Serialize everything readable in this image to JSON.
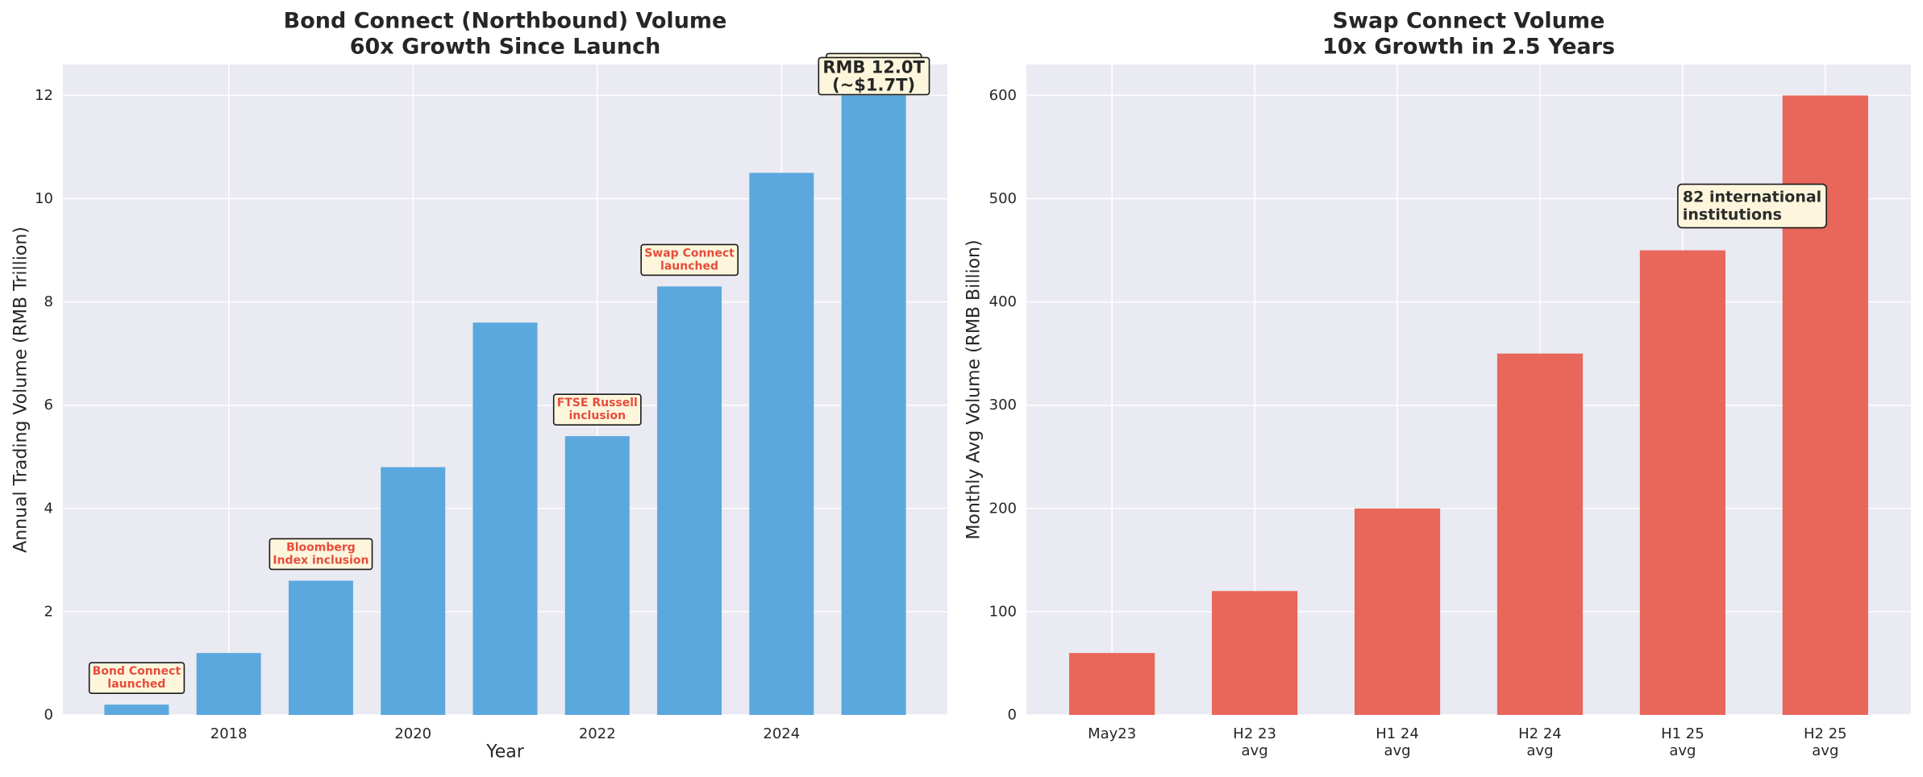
{
  "chart_data": [
    {
      "type": "bar",
      "title": "Bond Connect (Northbound) Volume\n60x Growth Since Launch",
      "xlabel": "Year",
      "ylabel": "Annual Trading Volume (RMB Trillion)",
      "x": [
        2017,
        2018,
        2019,
        2020,
        2021,
        2022,
        2023,
        2024,
        2025
      ],
      "values": [
        0.2,
        1.2,
        2.6,
        4.8,
        7.6,
        5.4,
        8.3,
        10.5,
        12.0
      ],
      "xlim": [
        2016.2,
        2025.8
      ],
      "ylim": [
        0,
        12.6
      ],
      "xticks": [
        "2018",
        "2020",
        "2022",
        "2024"
      ],
      "yticks": [
        "0",
        "2",
        "4",
        "6",
        "8",
        "10",
        "12"
      ],
      "grid": true,
      "colors": {
        "bar": "#5aa8de",
        "annotation_text": "#e74c3c",
        "annotation_box": "#fdf6dc",
        "background": "#eaeaf2"
      },
      "annotations": [
        {
          "x": 2017,
          "y": 0.2,
          "text": "Bond Connect\nlaunched"
        },
        {
          "x": 2019,
          "y": 2.6,
          "text": "Bloomberg\nIndex inclusion"
        },
        {
          "x": 2022,
          "y": 5.4,
          "text": "FTSE Russell\ninclusion"
        },
        {
          "x": 2023,
          "y": 8.3,
          "text": "Swap Connect\nlaunched"
        },
        {
          "x": 2025,
          "y": 12.0,
          "text": "Bond Connect\nexpanded"
        }
      ],
      "callout": {
        "x": 2025,
        "y": 12.0,
        "text": "RMB 12.0T\n(~$1.7T)"
      }
    },
    {
      "type": "bar",
      "title": "Swap Connect Volume\n10x Growth in 2.5 Years",
      "xlabel": "",
      "ylabel": "Monthly Avg Volume (RMB Billion)",
      "categories": [
        "May23",
        "H2 23\navg",
        "H1 24\navg",
        "H2 24\navg",
        "H1 25\navg",
        "H2 25\navg"
      ],
      "values": [
        60,
        120,
        200,
        350,
        450,
        600
      ],
      "ylim": [
        0,
        630
      ],
      "yticks": [
        "0",
        "100",
        "200",
        "300",
        "400",
        "500",
        "600"
      ],
      "grid": true,
      "colors": {
        "bar": "#e8665a",
        "annotation_box": "#fdf6dc",
        "background": "#eaeaf2"
      },
      "annotations": [
        {
          "category_index": 4,
          "y": 500,
          "text": "82 international\ninstitutions"
        }
      ]
    }
  ]
}
